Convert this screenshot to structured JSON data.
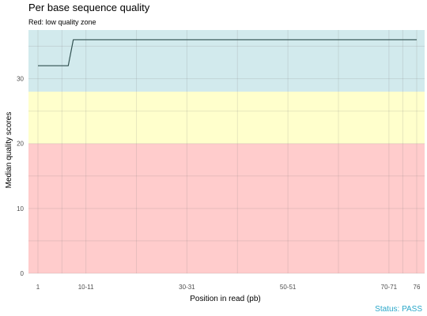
{
  "status_text": "Status: PASS",
  "chart_data": {
    "type": "line",
    "title": "Per base sequence quality",
    "subtitle": "Red: low quality zone",
    "xlabel": "Position in read (pb)",
    "ylabel": "Median quality scores",
    "x_tick_labels": [
      "1",
      "10-11",
      "30-31",
      "50-51",
      "70-71",
      "76"
    ],
    "y_ticks": [
      0,
      10,
      20,
      30
    ],
    "ylim": [
      0,
      37.5
    ],
    "zones": [
      {
        "name": "low",
        "from": 0,
        "to": 20,
        "color": "#ffcccc"
      },
      {
        "name": "medium",
        "from": 20,
        "to": 28,
        "color": "#ffffcc"
      },
      {
        "name": "high",
        "from": 28,
        "to": 37.5,
        "color": "#d2eaed"
      }
    ],
    "series": [
      {
        "color": "#2f4f4f",
        "points": [
          {
            "x": 1,
            "y": 32
          },
          {
            "x": 7,
            "y": 32
          },
          {
            "x": 8,
            "y": 36
          },
          {
            "x": 76,
            "y": 36
          }
        ]
      }
    ],
    "grid": true
  }
}
